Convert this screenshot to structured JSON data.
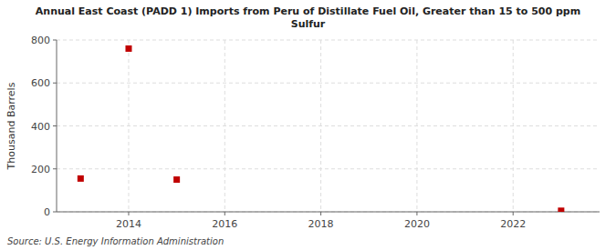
{
  "chart_data": {
    "type": "scatter",
    "title": "Annual East Coast (PADD 1) Imports from Peru of Distillate Fuel Oil, Greater than 15 to 500 ppm\nSulfur",
    "ylabel": "Thousand Barrels",
    "source": "Source: U.S. Energy Information Administration",
    "x": [
      2013,
      2014,
      2015,
      2023
    ],
    "values": [
      155,
      760,
      150,
      5
    ],
    "color": "#c00000",
    "marker": "square",
    "xlim": [
      2012.5,
      2023.8
    ],
    "ylim": [
      0,
      800
    ],
    "xticks": [
      2014,
      2016,
      2018,
      2020,
      2022
    ],
    "yticks": [
      0,
      200,
      400,
      600,
      800
    ],
    "grid": true
  }
}
